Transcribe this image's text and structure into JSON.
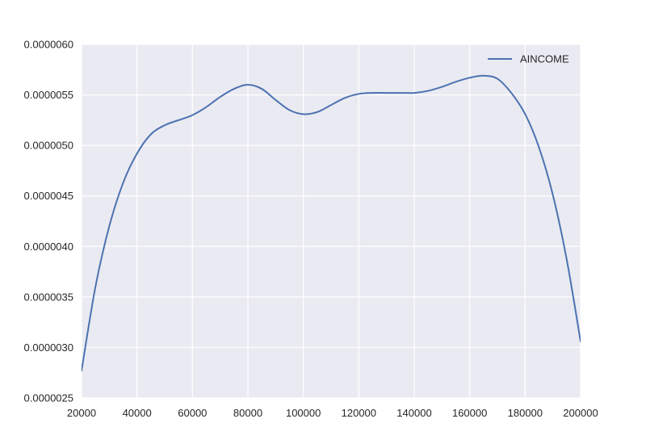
{
  "chart_data": {
    "type": "line",
    "title": "",
    "xlabel": "",
    "ylabel": "",
    "xlim": [
      20000,
      200000
    ],
    "ylim": [
      2.5e-06,
      6e-06
    ],
    "xticks": [
      20000,
      40000,
      60000,
      80000,
      100000,
      120000,
      140000,
      160000,
      180000,
      200000
    ],
    "xtick_labels": [
      "20000",
      "40000",
      "60000",
      "80000",
      "100000",
      "120000",
      "140000",
      "160000",
      "180000",
      "200000"
    ],
    "yticks": [
      2.5e-06,
      3e-06,
      3.5e-06,
      4e-06,
      4.5e-06,
      5e-06,
      5.5e-06,
      6e-06
    ],
    "ytick_labels": [
      "0.0000025",
      "0.0000030",
      "0.0000035",
      "0.0000040",
      "0.0000045",
      "0.0000050",
      "0.0000055",
      "0.0000060"
    ],
    "grid": true,
    "legend_position": "top-right",
    "series": [
      {
        "name": "AINCOME",
        "color": "#4c72b0",
        "x": [
          20000,
          25000,
          30000,
          35000,
          40000,
          45000,
          50000,
          55000,
          60000,
          65000,
          70000,
          75000,
          80000,
          85000,
          90000,
          95000,
          100000,
          105000,
          110000,
          115000,
          120000,
          125000,
          130000,
          135000,
          140000,
          145000,
          150000,
          155000,
          160000,
          165000,
          170000,
          175000,
          180000,
          185000,
          190000,
          195000,
          200000
        ],
        "y": [
          2.77e-06,
          3.6e-06,
          4.2e-06,
          4.63e-06,
          4.92e-06,
          5.11e-06,
          5.2e-06,
          5.25e-06,
          5.3e-06,
          5.38e-06,
          5.48e-06,
          5.56e-06,
          5.6e-06,
          5.56e-06,
          5.45e-06,
          5.35e-06,
          5.31e-06,
          5.33e-06,
          5.4e-06,
          5.47e-06,
          5.51e-06,
          5.52e-06,
          5.52e-06,
          5.52e-06,
          5.52e-06,
          5.54e-06,
          5.58e-06,
          5.63e-06,
          5.67e-06,
          5.69e-06,
          5.66e-06,
          5.52e-06,
          5.31e-06,
          4.98e-06,
          4.51e-06,
          3.87e-06,
          3.06e-06
        ]
      }
    ]
  }
}
